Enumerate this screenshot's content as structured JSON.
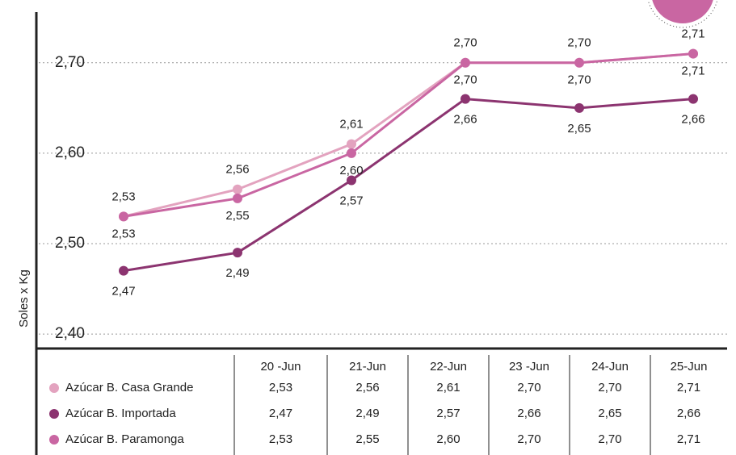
{
  "chart_data": {
    "type": "line",
    "y_label": "Soles x Kg",
    "categories": [
      "20 -Jun",
      "21-Jun",
      "22-Jun",
      "23 -Jun",
      "24-Jun",
      "25-Jun"
    ],
    "series": [
      {
        "name": "Azúcar B. Casa Grande",
        "color": "#e3a3bf",
        "values": [
          2.53,
          2.56,
          2.61,
          2.7,
          2.7,
          2.71
        ],
        "value_labels": [
          "2,53",
          "2,56",
          "2,61",
          "2,70",
          "2,70",
          "2,71"
        ]
      },
      {
        "name": "Azúcar B. Importada",
        "color": "#8c3470",
        "values": [
          2.47,
          2.49,
          2.57,
          2.66,
          2.65,
          2.66
        ],
        "value_labels": [
          "2,47",
          "2,49",
          "2,57",
          "2,66",
          "2,65",
          "2,66"
        ]
      },
      {
        "name": "Azúcar B. Paramonga",
        "color": "#c966a2",
        "values": [
          2.53,
          2.55,
          2.6,
          2.7,
          2.7,
          2.71
        ],
        "value_labels": [
          "2,53",
          "2,55",
          "2,60",
          "2,70",
          "2,70",
          "2,71"
        ]
      }
    ],
    "ylim": [
      2.384,
      2.756
    ],
    "yticks": [
      {
        "value": 2.4,
        "label": "2,40"
      },
      {
        "value": 2.5,
        "label": "2,50"
      },
      {
        "value": 2.6,
        "label": "2,60"
      },
      {
        "value": 2.7,
        "label": "2,70"
      }
    ],
    "grid": true
  }
}
